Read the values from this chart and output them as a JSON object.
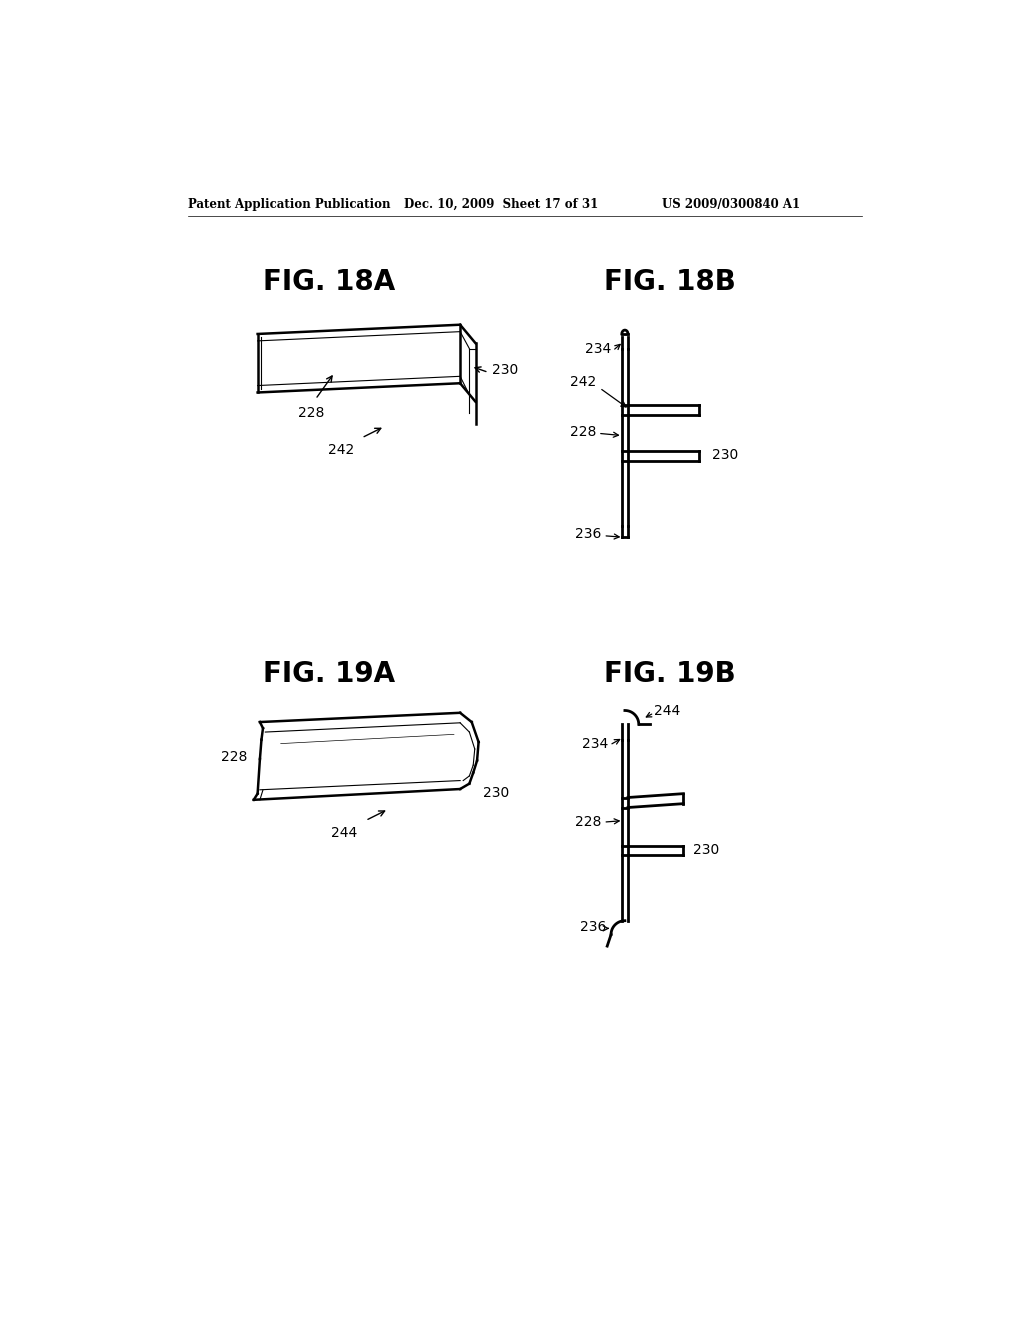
{
  "bg_color": "#ffffff",
  "header_left": "Patent Application Publication",
  "header_mid": "Dec. 10, 2009  Sheet 17 of 31",
  "header_right": "US 2009/0300840 A1",
  "fig18a_title": "FIG. 18A",
  "fig18b_title": "FIG. 18B",
  "fig19a_title": "FIG. 19A",
  "fig19b_title": "FIG. 19B",
  "line_color": "#000000",
  "linewidth": 1.5,
  "thin_linewidth": 0.8
}
